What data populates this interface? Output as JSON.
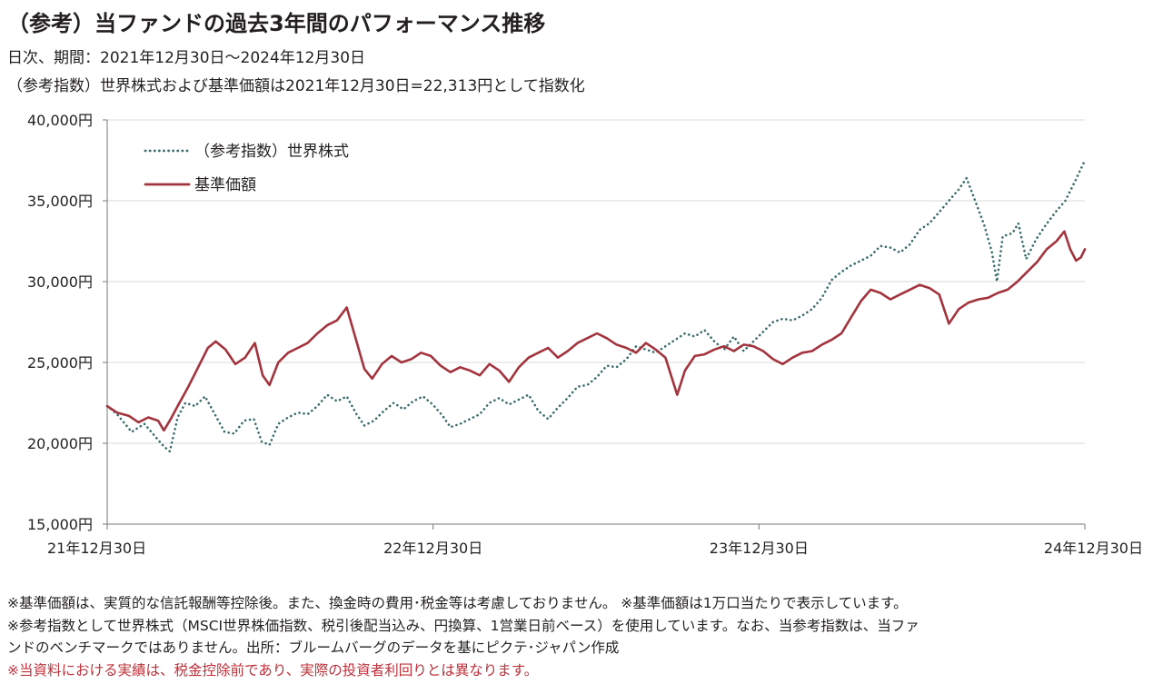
{
  "header": {
    "title": "（参考）当ファンドの過去3年間のパフォーマンス推移",
    "period": "日次、期間：2021年12月30日～2024年12月30日",
    "index_note": "（参考指数）世界株式および基準価額は2021年12月30日=22,313円として指数化"
  },
  "chart_data": {
    "type": "line",
    "x_tick_labels": [
      "21年12月30日",
      "22年12月30日",
      "23年12月30日",
      "24年12月30日"
    ],
    "y_tick_labels": [
      "40,000円",
      "35,000円",
      "30,000円",
      "25,000円",
      "20,000円",
      "15,000円"
    ],
    "ylim": [
      15000,
      40000
    ],
    "yticks": [
      40000,
      35000,
      30000,
      25000,
      20000,
      15000
    ],
    "grid": true,
    "legend_position": "top-left",
    "series": [
      {
        "name": "（参考指数）世界株式",
        "color": "#3a6b6b",
        "style": "dotted",
        "points": [
          [
            0.0,
            22300
          ],
          [
            0.01,
            21800
          ],
          [
            0.025,
            20700
          ],
          [
            0.038,
            21200
          ],
          [
            0.048,
            20500
          ],
          [
            0.058,
            19800
          ],
          [
            0.064,
            19500
          ],
          [
            0.072,
            21600
          ],
          [
            0.08,
            22500
          ],
          [
            0.09,
            22300
          ],
          [
            0.1,
            22900
          ],
          [
            0.11,
            21800
          ],
          [
            0.12,
            20700
          ],
          [
            0.13,
            20600
          ],
          [
            0.14,
            21400
          ],
          [
            0.15,
            21500
          ],
          [
            0.158,
            20100
          ],
          [
            0.166,
            19900
          ],
          [
            0.175,
            21200
          ],
          [
            0.185,
            21600
          ],
          [
            0.195,
            21900
          ],
          [
            0.205,
            21800
          ],
          [
            0.215,
            22300
          ],
          [
            0.225,
            23000
          ],
          [
            0.235,
            22600
          ],
          [
            0.245,
            22900
          ],
          [
            0.255,
            21800
          ],
          [
            0.263,
            21100
          ],
          [
            0.273,
            21400
          ],
          [
            0.283,
            22000
          ],
          [
            0.293,
            22500
          ],
          [
            0.303,
            22100
          ],
          [
            0.313,
            22600
          ],
          [
            0.323,
            22900
          ],
          [
            0.333,
            22400
          ],
          [
            0.343,
            21700
          ],
          [
            0.351,
            21000
          ],
          [
            0.361,
            21200
          ],
          [
            0.371,
            21500
          ],
          [
            0.381,
            21800
          ],
          [
            0.391,
            22500
          ],
          [
            0.401,
            22800
          ],
          [
            0.411,
            22400
          ],
          [
            0.421,
            22700
          ],
          [
            0.431,
            23000
          ],
          [
            0.441,
            22000
          ],
          [
            0.451,
            21500
          ],
          [
            0.461,
            22200
          ],
          [
            0.471,
            22800
          ],
          [
            0.481,
            23500
          ],
          [
            0.491,
            23600
          ],
          [
            0.501,
            24100
          ],
          [
            0.511,
            24800
          ],
          [
            0.521,
            24700
          ],
          [
            0.531,
            25200
          ],
          [
            0.541,
            26000
          ],
          [
            0.551,
            25800
          ],
          [
            0.561,
            25600
          ],
          [
            0.571,
            26000
          ],
          [
            0.581,
            26400
          ],
          [
            0.591,
            26800
          ],
          [
            0.601,
            26600
          ],
          [
            0.611,
            27000
          ],
          [
            0.621,
            26300
          ],
          [
            0.631,
            25800
          ],
          [
            0.641,
            26600
          ],
          [
            0.651,
            25700
          ],
          [
            0.661,
            26300
          ],
          [
            0.671,
            26900
          ],
          [
            0.681,
            27500
          ],
          [
            0.691,
            27700
          ],
          [
            0.701,
            27600
          ],
          [
            0.711,
            27900
          ],
          [
            0.721,
            28300
          ],
          [
            0.731,
            29000
          ],
          [
            0.741,
            30100
          ],
          [
            0.751,
            30600
          ],
          [
            0.761,
            31000
          ],
          [
            0.771,
            31300
          ],
          [
            0.781,
            31600
          ],
          [
            0.791,
            32200
          ],
          [
            0.801,
            32100
          ],
          [
            0.811,
            31800
          ],
          [
            0.821,
            32300
          ],
          [
            0.831,
            33200
          ],
          [
            0.841,
            33600
          ],
          [
            0.851,
            34300
          ],
          [
            0.861,
            35000
          ],
          [
            0.871,
            35700
          ],
          [
            0.879,
            36400
          ],
          [
            0.889,
            34800
          ],
          [
            0.897,
            33500
          ],
          [
            0.905,
            31800
          ],
          [
            0.91,
            30000
          ],
          [
            0.916,
            32800
          ],
          [
            0.926,
            33000
          ],
          [
            0.932,
            33600
          ],
          [
            0.94,
            31400
          ],
          [
            0.95,
            32600
          ],
          [
            0.96,
            33500
          ],
          [
            0.97,
            34300
          ],
          [
            0.98,
            35000
          ],
          [
            0.99,
            36200
          ],
          [
            1.0,
            37500
          ]
        ]
      },
      {
        "name": "基準価額",
        "color": "#a3333d",
        "style": "solid",
        "points": [
          [
            0.0,
            22300
          ],
          [
            0.01,
            21900
          ],
          [
            0.022,
            21700
          ],
          [
            0.032,
            21300
          ],
          [
            0.042,
            21600
          ],
          [
            0.052,
            21400
          ],
          [
            0.058,
            20800
          ],
          [
            0.065,
            21500
          ],
          [
            0.073,
            22400
          ],
          [
            0.083,
            23500
          ],
          [
            0.093,
            24700
          ],
          [
            0.103,
            25900
          ],
          [
            0.111,
            26300
          ],
          [
            0.121,
            25800
          ],
          [
            0.131,
            24900
          ],
          [
            0.141,
            25300
          ],
          [
            0.151,
            26200
          ],
          [
            0.159,
            24200
          ],
          [
            0.166,
            23600
          ],
          [
            0.175,
            25000
          ],
          [
            0.185,
            25600
          ],
          [
            0.195,
            25900
          ],
          [
            0.205,
            26200
          ],
          [
            0.215,
            26800
          ],
          [
            0.225,
            27300
          ],
          [
            0.235,
            27600
          ],
          [
            0.245,
            28400
          ],
          [
            0.255,
            26300
          ],
          [
            0.263,
            24600
          ],
          [
            0.271,
            24000
          ],
          [
            0.281,
            24900
          ],
          [
            0.291,
            25400
          ],
          [
            0.301,
            25000
          ],
          [
            0.311,
            25200
          ],
          [
            0.321,
            25600
          ],
          [
            0.331,
            25400
          ],
          [
            0.341,
            24800
          ],
          [
            0.351,
            24400
          ],
          [
            0.361,
            24700
          ],
          [
            0.371,
            24500
          ],
          [
            0.381,
            24200
          ],
          [
            0.391,
            24900
          ],
          [
            0.401,
            24500
          ],
          [
            0.411,
            23800
          ],
          [
            0.421,
            24700
          ],
          [
            0.431,
            25300
          ],
          [
            0.441,
            25600
          ],
          [
            0.451,
            25900
          ],
          [
            0.461,
            25300
          ],
          [
            0.471,
            25700
          ],
          [
            0.481,
            26200
          ],
          [
            0.491,
            26500
          ],
          [
            0.501,
            26800
          ],
          [
            0.511,
            26500
          ],
          [
            0.521,
            26100
          ],
          [
            0.531,
            25900
          ],
          [
            0.541,
            25600
          ],
          [
            0.551,
            26200
          ],
          [
            0.561,
            25800
          ],
          [
            0.571,
            25300
          ],
          [
            0.583,
            23000
          ],
          [
            0.591,
            24500
          ],
          [
            0.601,
            25400
          ],
          [
            0.611,
            25500
          ],
          [
            0.621,
            25800
          ],
          [
            0.631,
            26000
          ],
          [
            0.641,
            25700
          ],
          [
            0.651,
            26100
          ],
          [
            0.661,
            26000
          ],
          [
            0.671,
            25700
          ],
          [
            0.681,
            25200
          ],
          [
            0.691,
            24900
          ],
          [
            0.701,
            25300
          ],
          [
            0.711,
            25600
          ],
          [
            0.721,
            25700
          ],
          [
            0.731,
            26100
          ],
          [
            0.741,
            26400
          ],
          [
            0.751,
            26800
          ],
          [
            0.761,
            27800
          ],
          [
            0.771,
            28800
          ],
          [
            0.781,
            29500
          ],
          [
            0.791,
            29300
          ],
          [
            0.801,
            28900
          ],
          [
            0.811,
            29200
          ],
          [
            0.821,
            29500
          ],
          [
            0.831,
            29800
          ],
          [
            0.841,
            29600
          ],
          [
            0.851,
            29200
          ],
          [
            0.861,
            27400
          ],
          [
            0.871,
            28300
          ],
          [
            0.881,
            28700
          ],
          [
            0.891,
            28900
          ],
          [
            0.901,
            29000
          ],
          [
            0.911,
            29300
          ],
          [
            0.921,
            29500
          ],
          [
            0.931,
            30000
          ],
          [
            0.941,
            30600
          ],
          [
            0.951,
            31200
          ],
          [
            0.961,
            32000
          ],
          [
            0.971,
            32500
          ],
          [
            0.979,
            33100
          ],
          [
            0.985,
            32000
          ],
          [
            0.991,
            31300
          ],
          [
            0.996,
            31500
          ],
          [
            1.0,
            32000
          ]
        ]
      }
    ]
  },
  "notes": {
    "line1": "※基準価額は、実質的な信託報酬等控除後。また、換金時の費用･税金等は考慮しておりません。 ※基準価額は1万口当たりで表示しています。",
    "line2": "※参考指数として世界株式（MSCI世界株価指数、税引後配当込み、円換算、1営業日前ベース）を使用しています。なお、当参考指数は、当ファ",
    "line3": "ンドのベンチマークではありません。出所：ブルームバーグのデータを基にピクテ･ジャパン作成",
    "line4": "※当資料における実績は、税金控除前であり、実際の投資者利回りとは異なります。"
  }
}
